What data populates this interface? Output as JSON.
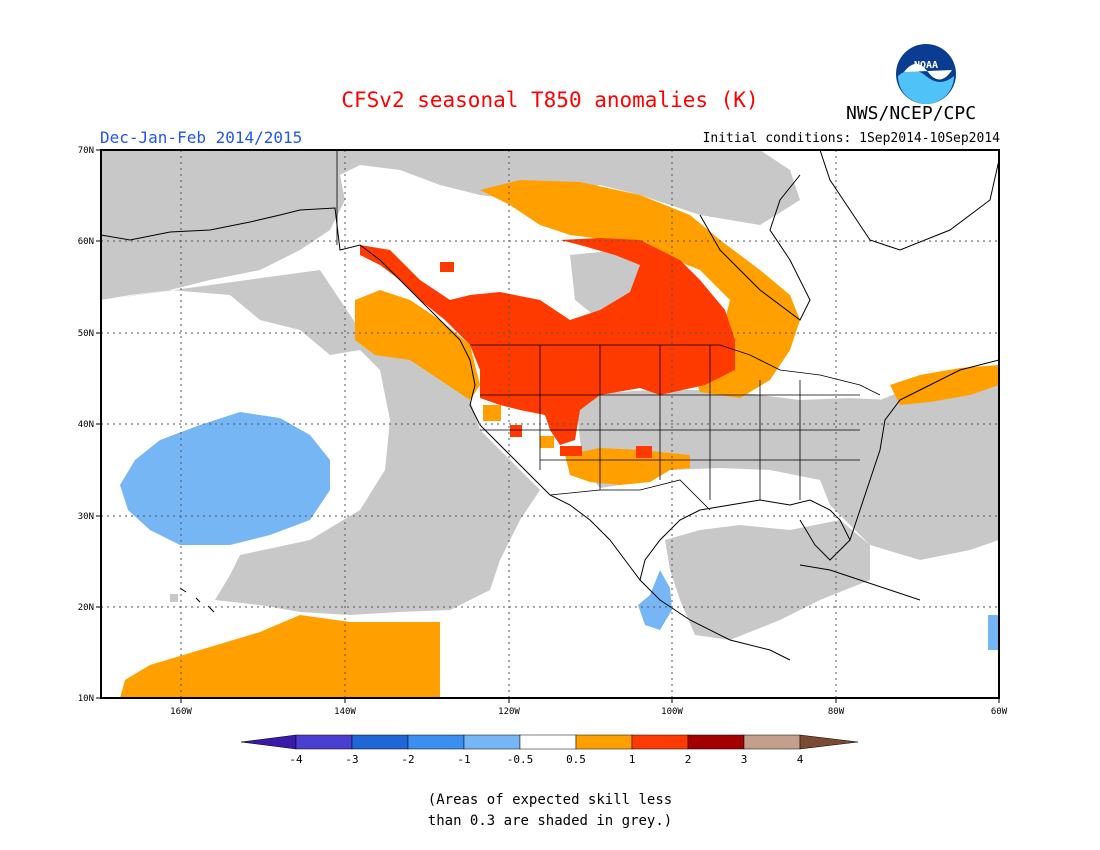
{
  "header": {
    "title": "CFSv2 seasonal T850 anomalies (K)",
    "agency": "NWS/NCEP/CPC",
    "logo_text": "NOAA",
    "season": "Dec-Jan-Feb 2014/2015",
    "initial_conditions": "Initial conditions: 1Sep2014-10Sep2014"
  },
  "map": {
    "lat_labels": [
      "70N",
      "60N",
      "50N",
      "40N",
      "30N",
      "20N",
      "10N"
    ],
    "lon_labels": [
      "160W",
      "140W",
      "120W",
      "100W",
      "80W",
      "60W"
    ],
    "region_labels": {
      "skill_grey": "Low skill (grey)",
      "warm_05_1": "0.5 to 1 K",
      "warm_1_2": "1 to 2 K",
      "cool_m05_m1": "-1 to -0.5 K"
    }
  },
  "legend": {
    "ticks": [
      "-4",
      "-3",
      "-2",
      "-1",
      "-0.5",
      "0.5",
      "1",
      "2",
      "3",
      "4"
    ],
    "colors": [
      "#3a1aa8",
      "#4a3fd0",
      "#1f66d6",
      "#3b8ff0",
      "#76b6f5",
      "#ffffff",
      "#ffa000",
      "#ff3a00",
      "#a30000",
      "#c4a08c",
      "#7a4a32"
    ]
  },
  "colors": {
    "grey": "#c8c8c8",
    "orange": "#ffa000",
    "red": "#ff3a00",
    "lightblue": "#76b6f5",
    "title_red": "#ff0000",
    "season_blue": "#2255ee"
  },
  "caption": {
    "line1": "(Areas of expected skill less",
    "line2": "than 0.3 are shaded in grey.)"
  }
}
